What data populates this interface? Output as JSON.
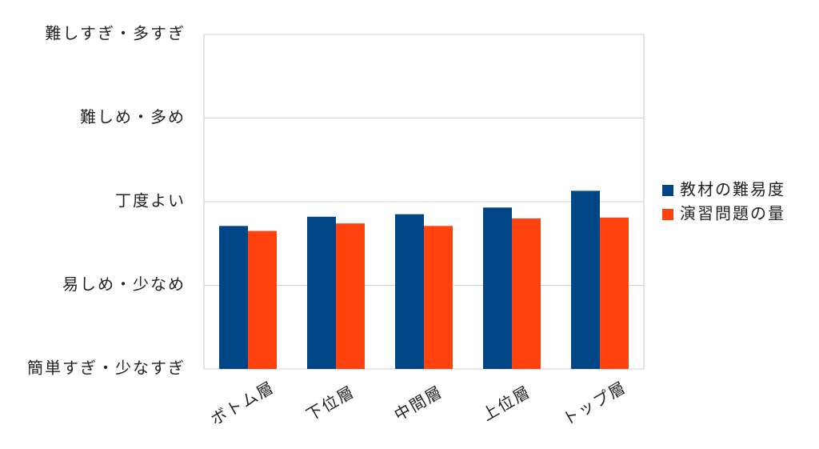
{
  "chart_data": {
    "type": "bar",
    "categories": [
      "ボトム層",
      "下位層",
      "中間層",
      "上位層",
      "トップ層"
    ],
    "series": [
      {
        "name": "教材の難易度",
        "color": "#004586",
        "values": [
          2.71,
          2.82,
          2.85,
          2.93,
          3.13
        ]
      },
      {
        "name": "演習問題の量",
        "color": "#ff420e",
        "values": [
          2.65,
          2.74,
          2.71,
          2.8,
          2.81
        ]
      }
    ],
    "ylim": [
      1,
      5
    ],
    "yticks": [
      {
        "value": 1,
        "label": "簡単すぎ・少なすぎ"
      },
      {
        "value": 2,
        "label": "易しめ・少なめ"
      },
      {
        "value": 3,
        "label": "丁度よい"
      },
      {
        "value": 4,
        "label": "難しめ・多め"
      },
      {
        "value": 5,
        "label": "難しすぎ・多すぎ"
      }
    ],
    "grid": true,
    "legend": "right"
  }
}
